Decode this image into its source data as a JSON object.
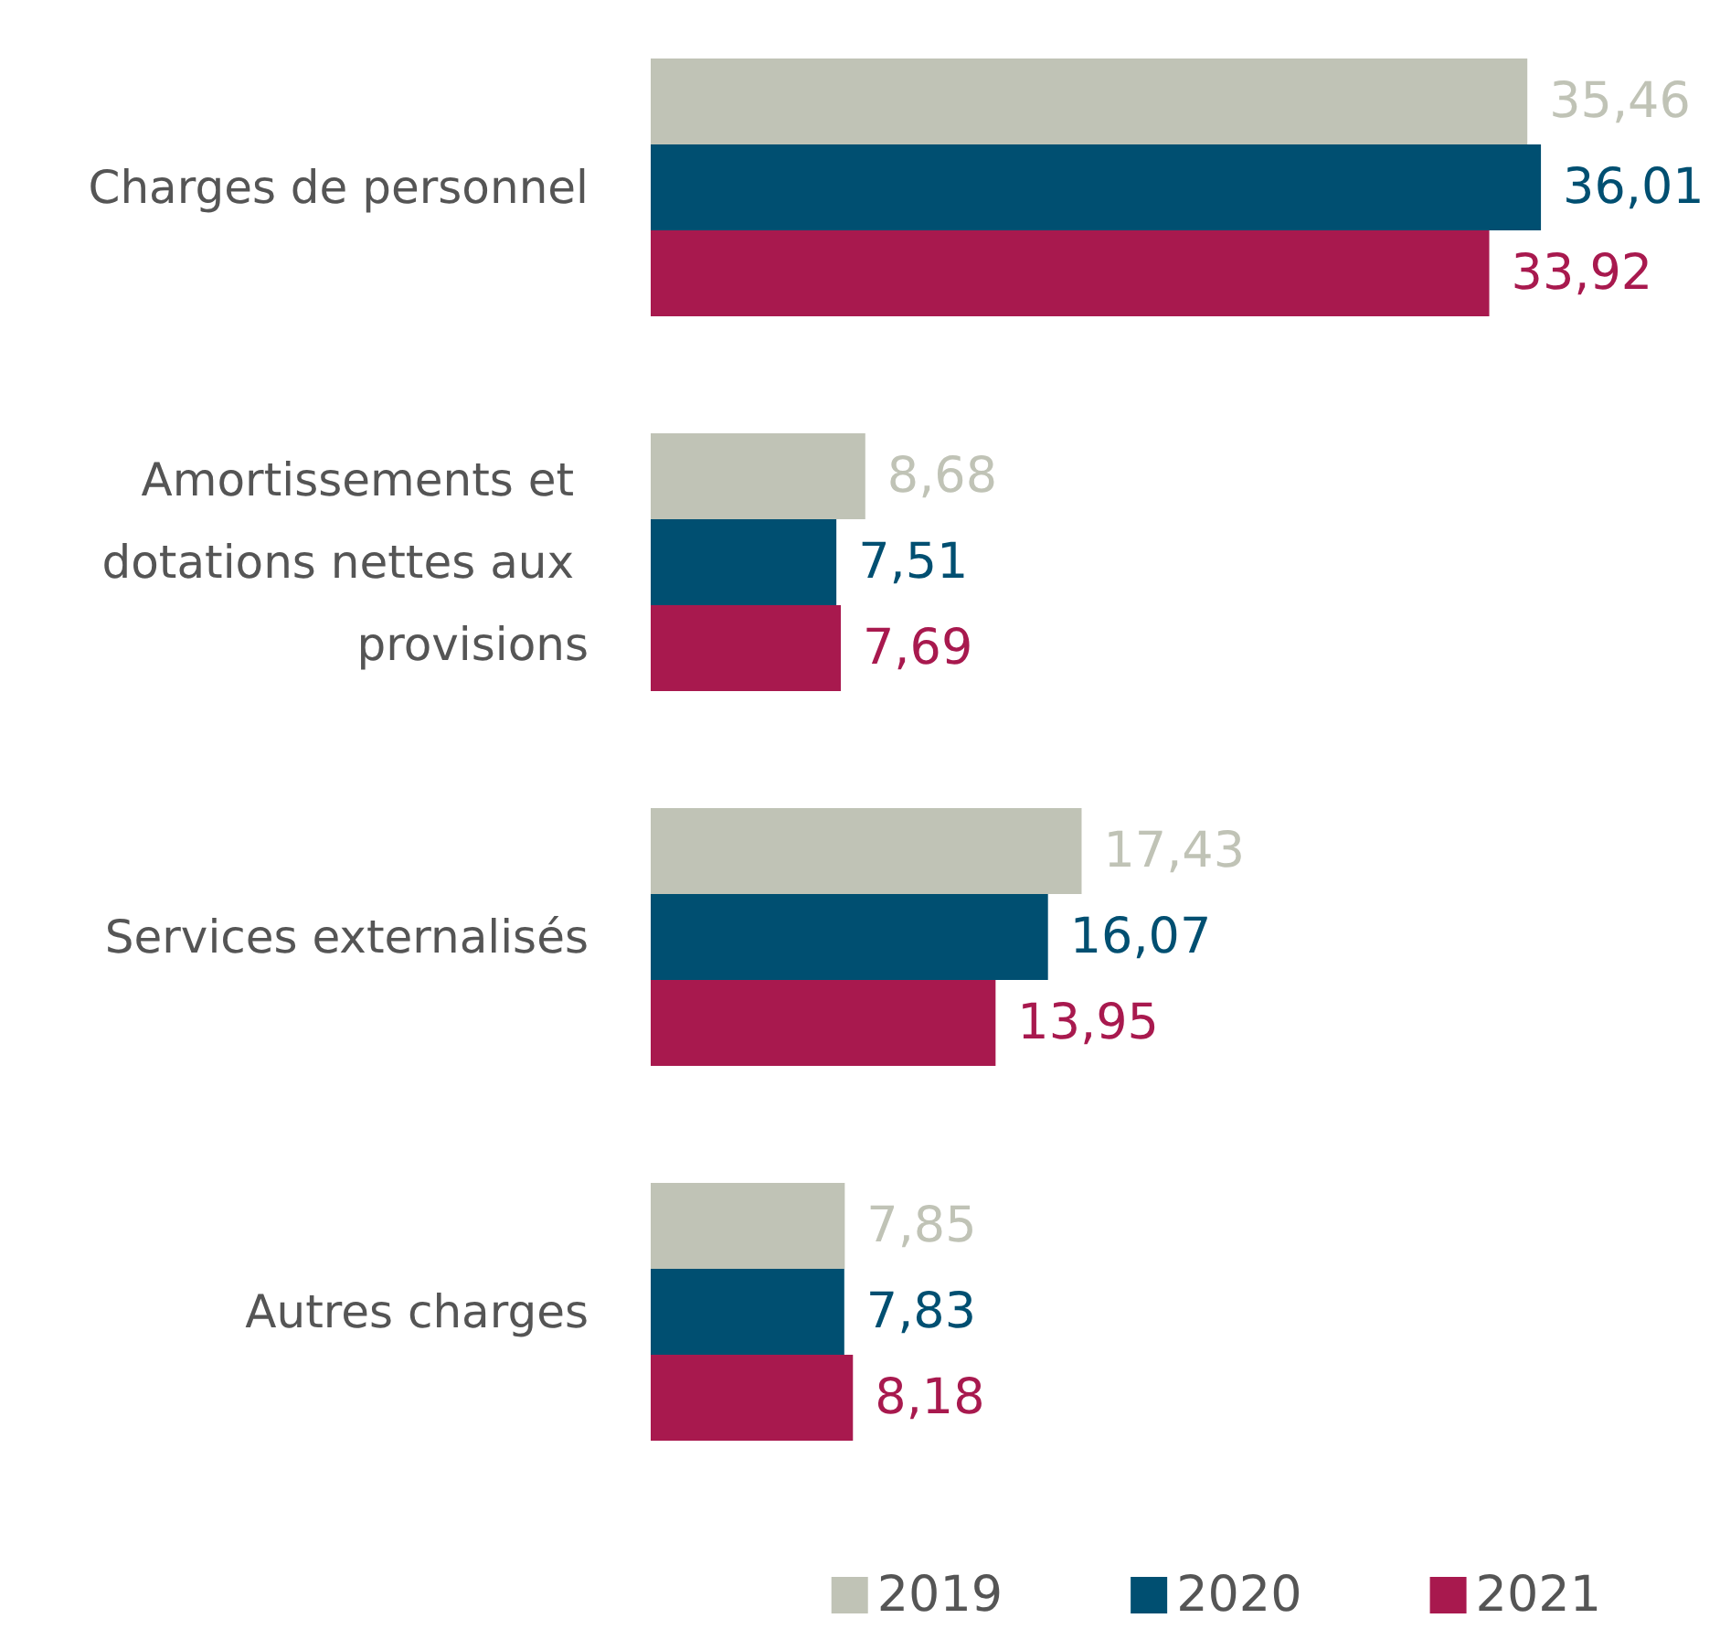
{
  "chart_data": {
    "type": "bar",
    "orientation": "horizontal",
    "categories": [
      "Charges de personnel",
      "Amortissements et dotations nettes aux provisions",
      "Services externalisés",
      "Autres charges"
    ],
    "series": [
      {
        "name": "2019",
        "color": "#c0c3b6",
        "values": [
          35.46,
          8.68,
          17.43,
          7.85
        ],
        "value_labels": [
          "35,46",
          "8,68",
          "17,43",
          "7,85"
        ]
      },
      {
        "name": "2020",
        "color": "#004f71",
        "values": [
          36.01,
          7.51,
          16.07,
          7.83
        ],
        "value_labels": [
          "36,01",
          "7,51",
          "16,07",
          "7,83"
        ]
      },
      {
        "name": "2021",
        "color": "#a8194e",
        "values": [
          33.92,
          7.69,
          13.95,
          8.18
        ],
        "value_labels": [
          "33,92",
          "7,69",
          "13,95",
          "8,18"
        ]
      }
    ],
    "legend": "bottom right",
    "grid": false
  }
}
